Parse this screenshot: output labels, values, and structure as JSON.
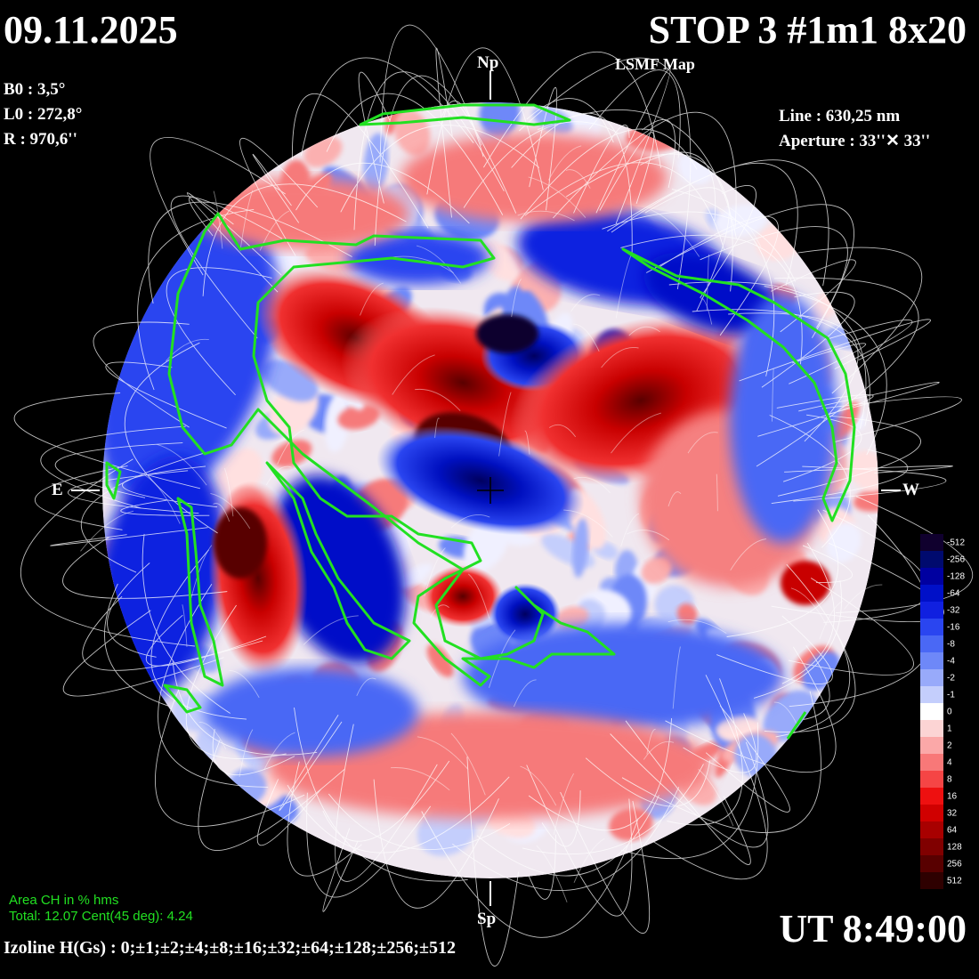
{
  "header": {
    "date": "09.11.2025",
    "title": "STOP 3 #1m1 8x20",
    "map_label": "LSMF  Map"
  },
  "params_left": {
    "b0": "B0 : 3,5°",
    "l0": "L0 : 272,8°",
    "r": "R  : 970,6''"
  },
  "params_right": {
    "line": "Line :  630,25 nm",
    "aperture": "Aperture : 33''✕ 33''"
  },
  "directions": {
    "north": "Np",
    "south": "Sp",
    "east": "E",
    "west": "W"
  },
  "coronal_holes": {
    "heading": "Area CH in % hms",
    "summary": "Total: 12.07    Cent(45 deg): 4.24"
  },
  "isolines": "Izoline H(Gs) : 0;±1;±2;±4;±8;±16;±32;±64;±128;±256;±512",
  "time": "UT 8:49:00",
  "colorbar": {
    "labels": [
      "-512",
      "-256",
      "-128",
      "-64",
      "-32",
      "-16",
      "-8",
      "-4",
      "-2",
      "-1",
      "0",
      "1",
      "2",
      "4",
      "8",
      "16",
      "32",
      "64",
      "128",
      "256",
      "512"
    ],
    "colors": [
      "#10002e",
      "#000a6e",
      "#0000a0",
      "#0010c8",
      "#1020e0",
      "#2a45f0",
      "#4a68f5",
      "#6e88f8",
      "#98aafa",
      "#c4cefc",
      "#ffffff",
      "#fcd4d4",
      "#fba8a8",
      "#f87878",
      "#f54545",
      "#ee1010",
      "#d00000",
      "#a80000",
      "#800000",
      "#580000",
      "#2e0000"
    ]
  },
  "colors": {
    "background": "#000000",
    "neutral_line": "#ffffff",
    "coronal_hole_contour": "#22e022",
    "positive": "#e01010",
    "negative": "#1030d8"
  }
}
